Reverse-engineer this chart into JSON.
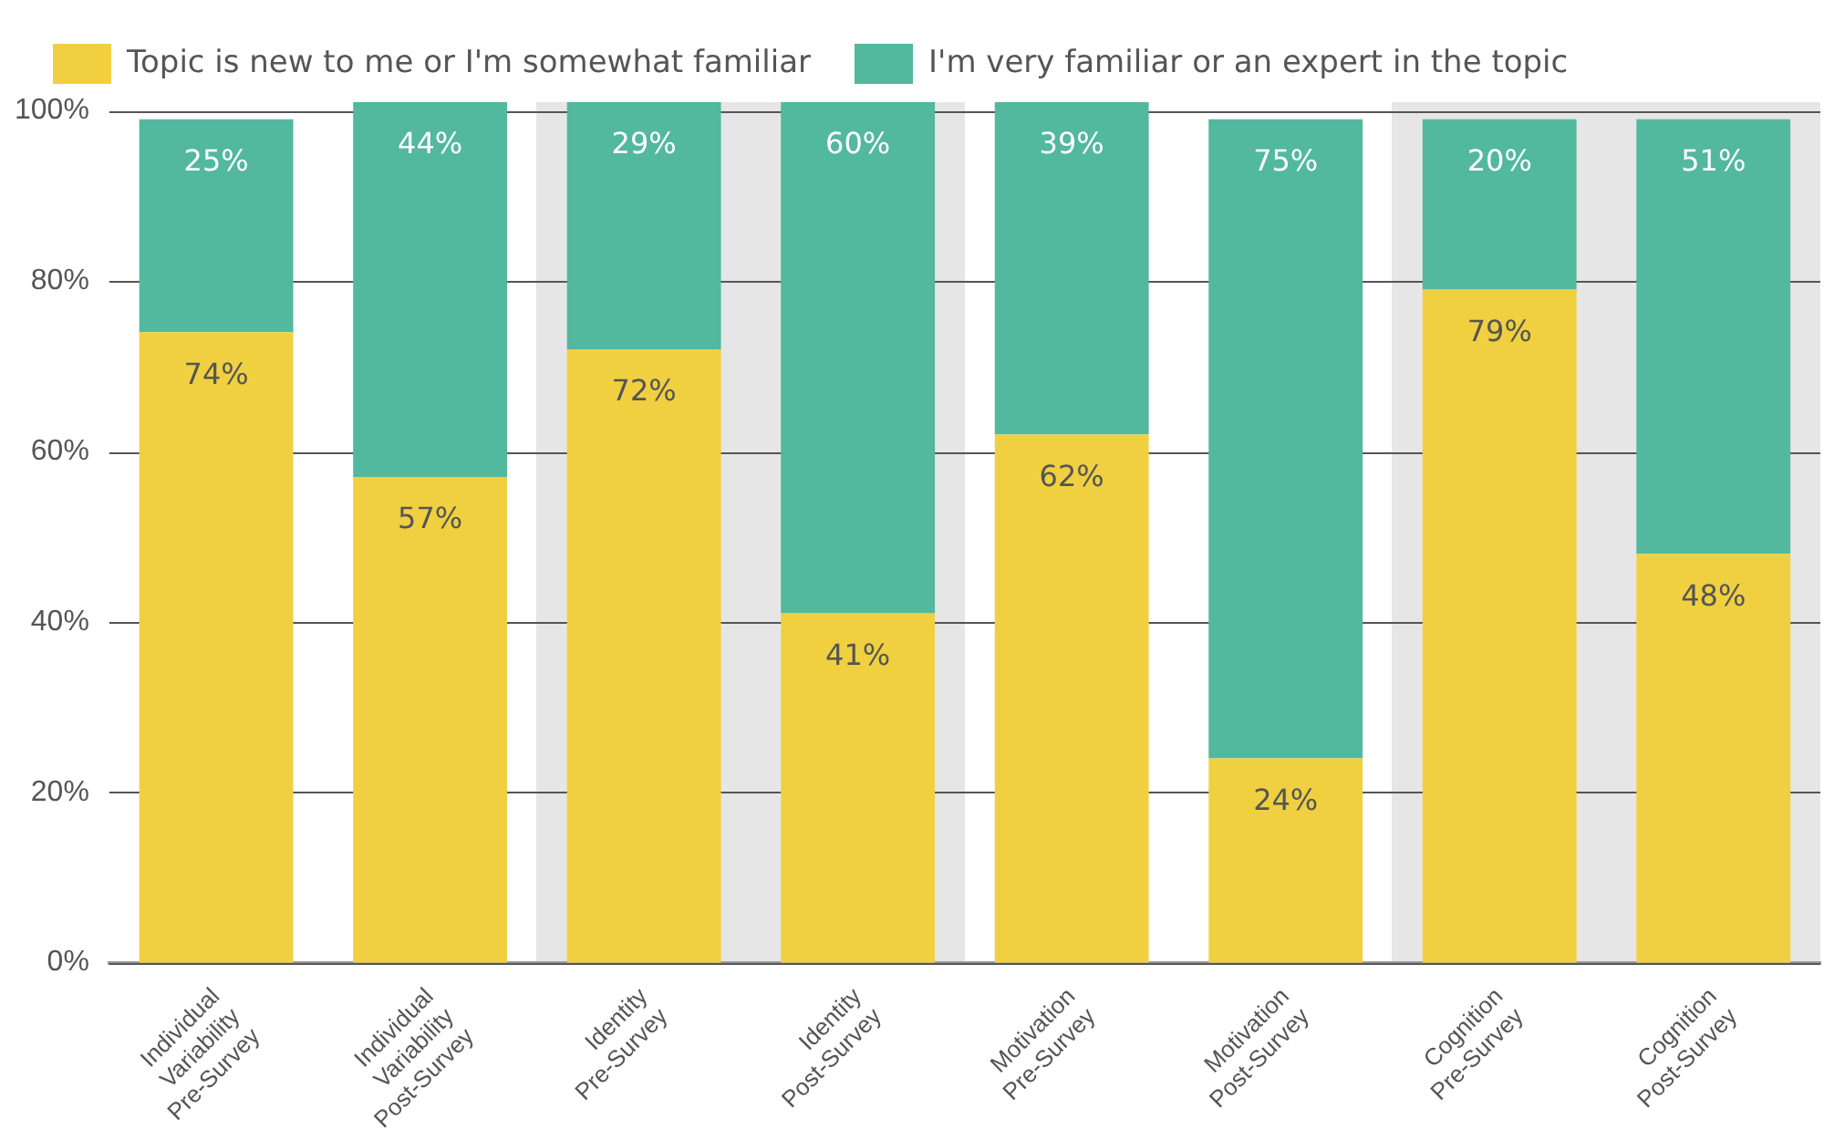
{
  "chart_data": {
    "type": "bar",
    "stacked": true,
    "categories": [
      "Individual\nVariability\nPre-Survey",
      "Individual\nVariability\nPost-Survey",
      "Identity\nPre-Survey",
      "Identity\nPost-Survey",
      "Motivation\nPre-Survey",
      "Motivation\nPost-Survey",
      "Cognition\nPre-Survey",
      "Cognition\nPost-Survey"
    ],
    "series": [
      {
        "name": "Topic is new to me or I'm somewhat familiar",
        "color": "#f0d040",
        "values": [
          74,
          57,
          72,
          41,
          62,
          24,
          79,
          48
        ],
        "value_labels": [
          "74%",
          "57%",
          "72%",
          "41%",
          "62%",
          "24%",
          "79%",
          "48%"
        ]
      },
      {
        "name": "I'm very familiar or an expert in the topic",
        "color": "#52b89e",
        "values": [
          25,
          44,
          29,
          60,
          39,
          75,
          20,
          51
        ],
        "value_labels": [
          "25%",
          "44%",
          "29%",
          "60%",
          "39%",
          "75%",
          "20%",
          "51%"
        ]
      }
    ],
    "ylim": [
      0,
      101
    ],
    "yticks": [
      {
        "value": 0,
        "label": "0%"
      },
      {
        "value": 20,
        "label": "20%"
      },
      {
        "value": 40,
        "label": "40%"
      },
      {
        "value": 60,
        "label": "60%"
      },
      {
        "value": 80,
        "label": "80%"
      },
      {
        "value": 100,
        "label": "100%"
      }
    ],
    "grid": "y",
    "legend": "top"
  }
}
